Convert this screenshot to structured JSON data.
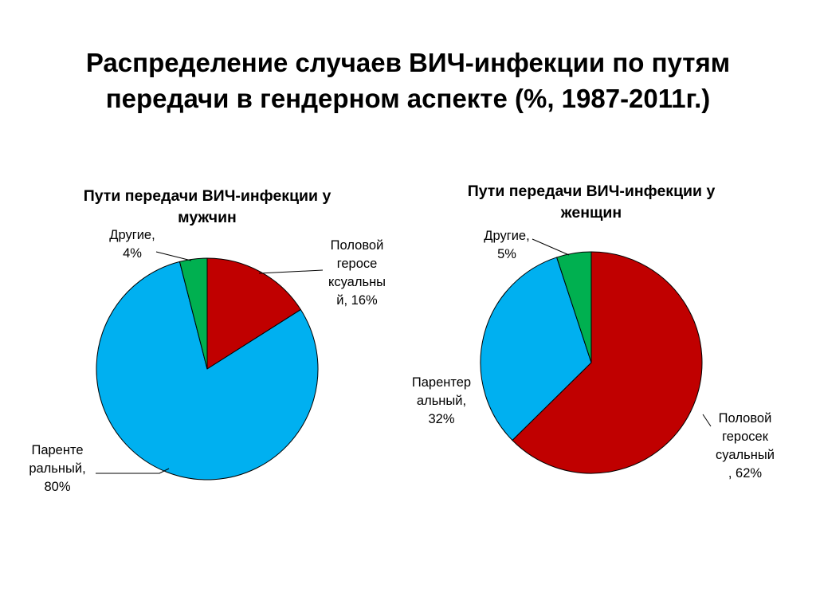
{
  "title": {
    "line1": "Распределение случаев ВИЧ-инфекции по путям",
    "line2": "передачи в гендерном аспекте (%, 1987-2011г.)"
  },
  "chart_data": [
    {
      "type": "pie",
      "title_lines": [
        "Пути передачи ВИЧ-инфекции у",
        "мужчин"
      ],
      "slices": [
        {
          "name": "Половой гетеросексуальный",
          "value": 16,
          "color": "#C00000",
          "label_lines": [
            "Половой",
            "геросе",
            "ксуальны",
            "й, 16%"
          ]
        },
        {
          "name": "Парентеральный",
          "value": 80,
          "color": "#00B0F0",
          "label_lines": [
            "Паренте",
            "ральный,",
            "80%"
          ]
        },
        {
          "name": "Другие",
          "value": 4,
          "color": "#00B050",
          "label_lines": [
            "Другие,",
            "4%"
          ]
        }
      ]
    },
    {
      "type": "pie",
      "title_lines": [
        "Пути передачи ВИЧ-инфекции у",
        "женщин"
      ],
      "slices": [
        {
          "name": "Половой гетеросексуальный",
          "value": 62,
          "color": "#C00000",
          "label_lines": [
            "Половой",
            "геросек",
            "суальный",
            ", 62%"
          ]
        },
        {
          "name": "Парентеральный",
          "value": 32,
          "color": "#00B0F0",
          "label_lines": [
            "Парентер",
            "альный,",
            "32%"
          ]
        },
        {
          "name": "Другие",
          "value": 5,
          "color": "#00B050",
          "label_lines": [
            "Другие,",
            "5%"
          ]
        }
      ]
    }
  ]
}
